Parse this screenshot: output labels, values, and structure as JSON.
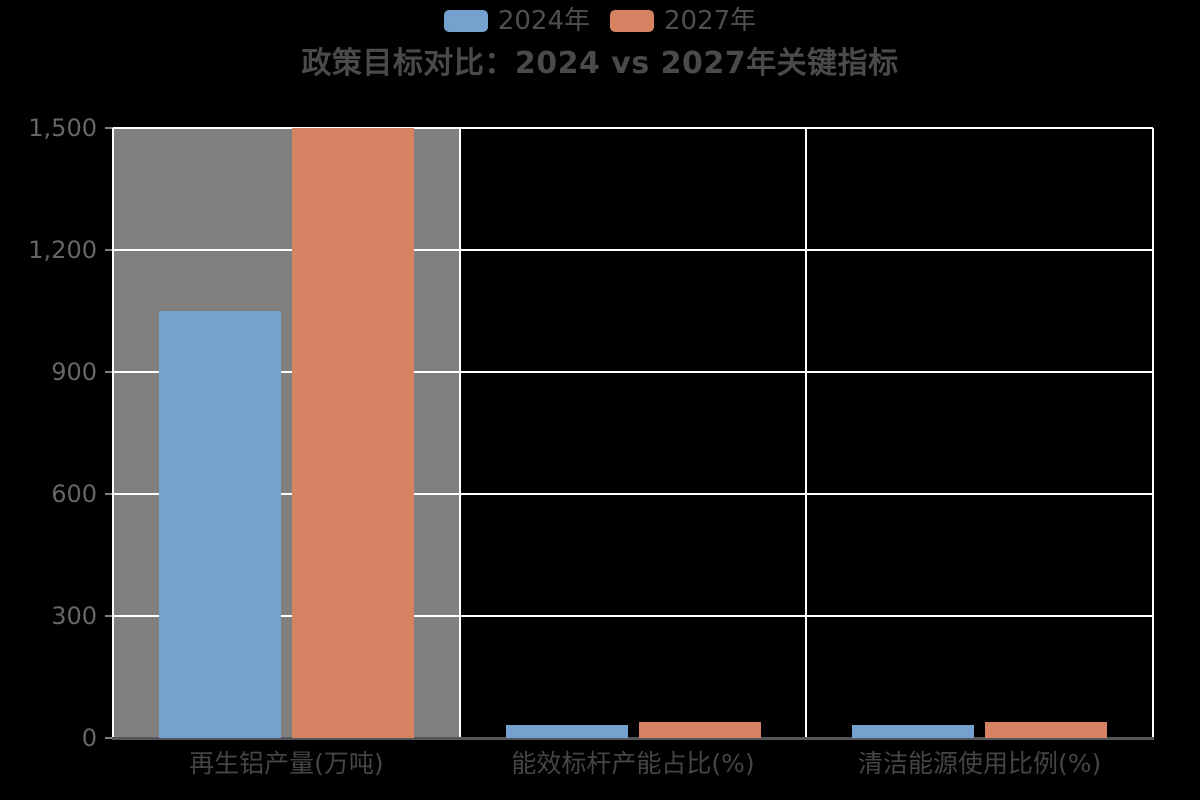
{
  "chart_data": {
    "type": "bar",
    "title": "政策目标对比：2024 vs 2027年关键指标",
    "categories": [
      "再生铝产量(万吨)",
      "能效标杆产能占比(%)",
      "清洁能源使用比例(%)"
    ],
    "series": [
      {
        "name": "2024年",
        "color": "#74A1CE",
        "values": [
          1050,
          33,
          33
        ]
      },
      {
        "name": "2027年",
        "color": "#D68363",
        "values": [
          1500,
          40,
          40
        ]
      }
    ],
    "ylim": [
      0,
      1500
    ],
    "yticks": [
      0,
      300,
      600,
      900,
      1200,
      1500
    ],
    "ytick_labels": [
      "0",
      "300",
      "600",
      "900",
      "1,200",
      "1,500"
    ],
    "grid": true,
    "legend_position": "top",
    "highlighted_category_index": 0,
    "styles": {
      "background": "#000000",
      "gridline_color": "#FFFFFF",
      "hover_band_color": "rgba(255,255,255,0.5)",
      "axis_line_color": "#55565A",
      "tick_color": "#808080",
      "ytick_label_color": "#666666",
      "xtick_label_color": "#454545",
      "title_color": "#4A4A4A",
      "legend_text_color": "#4F4F4F"
    }
  }
}
